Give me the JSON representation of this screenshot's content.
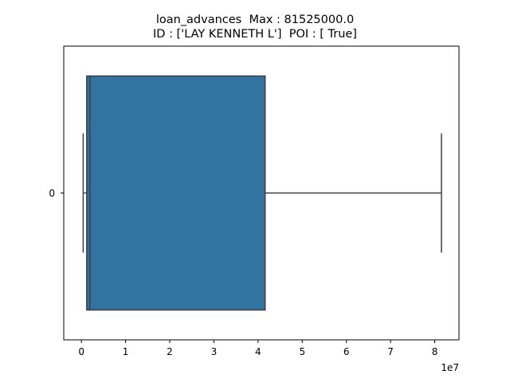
{
  "chart_data": {
    "type": "box",
    "title_lines": [
      "loan_advances  Max : 81525000.0",
      "ID : ['LAY KENNETH L']  POI : [ True]"
    ],
    "orientation": "horizontal",
    "category_labels": [
      "0"
    ],
    "x_ticks": [
      0,
      1,
      2,
      3,
      4,
      5,
      6,
      7,
      8
    ],
    "x_tick_labels": [
      "0",
      "1",
      "2",
      "3",
      "4",
      "5",
      "6",
      "7",
      "8"
    ],
    "x_offset_label": "1e7",
    "xlim": [
      -0.4,
      8.55
    ],
    "x_unit_multiplier": 10000000,
    "box": {
      "whisker_low": 0.04,
      "q1": 0.12,
      "median": 0.19,
      "q3": 4.16,
      "whisker_high": 8.1525
    },
    "colors": {
      "box_fill": "#3274a1",
      "lines": "#3f3f3f",
      "axes": "#000000"
    }
  }
}
